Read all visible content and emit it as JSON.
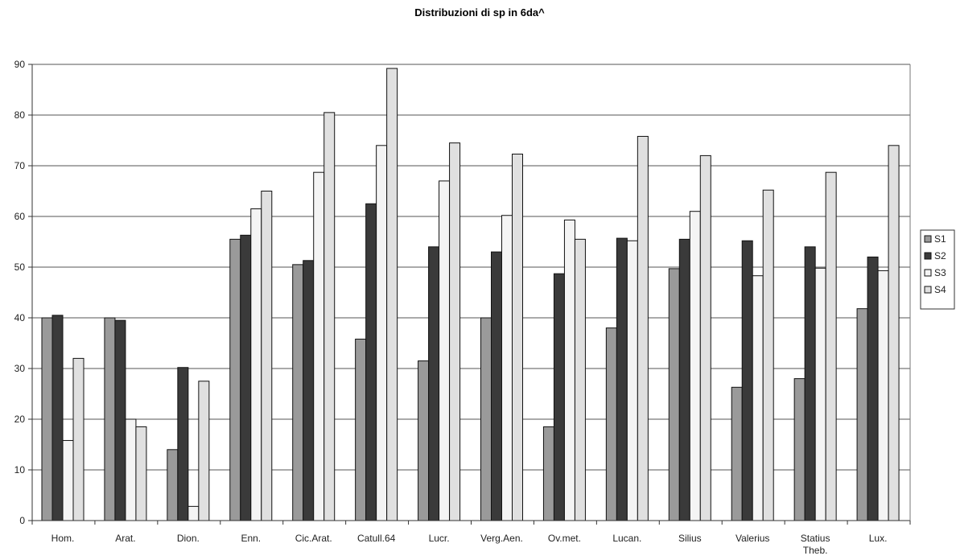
{
  "chart_data": {
    "type": "bar",
    "title": "Distribuzioni di sp in 6da^",
    "xlabel": "",
    "ylabel": "",
    "ylim": [
      0,
      90
    ],
    "yticks": [
      0,
      10,
      20,
      30,
      40,
      50,
      60,
      70,
      80,
      90
    ],
    "grid": true,
    "legend_position": "right",
    "categories": [
      [
        "Hom."
      ],
      [
        "Arat."
      ],
      [
        "Dion."
      ],
      [
        "Enn."
      ],
      [
        "Cic.Arat."
      ],
      [
        "Catull.64"
      ],
      [
        "Lucr."
      ],
      [
        "Verg.Aen."
      ],
      [
        "Ov.met."
      ],
      [
        "Lucan."
      ],
      [
        "Silius"
      ],
      [
        "Valerius"
      ],
      [
        "Statius",
        "Theb."
      ],
      [
        "Lux."
      ]
    ],
    "series": [
      {
        "name": "S1",
        "color": "#9a9a9a",
        "values": [
          40,
          40,
          14,
          55.5,
          50.5,
          35.8,
          31.5,
          40,
          18.5,
          38,
          49.7,
          26.3,
          28,
          41.8
        ]
      },
      {
        "name": "S2",
        "color": "#3a3a3a",
        "values": [
          40.5,
          39.5,
          30.2,
          56.3,
          51.3,
          62.5,
          54,
          53,
          48.7,
          55.7,
          55.5,
          55.2,
          54,
          52
        ]
      },
      {
        "name": "S3",
        "color": "#f4f4f4",
        "values": [
          15.8,
          20,
          2.8,
          61.5,
          68.7,
          74,
          67,
          60.2,
          59.3,
          55.2,
          61,
          48.3,
          49.8,
          49.3
        ]
      },
      {
        "name": "S4",
        "color": "#e0e0e0",
        "values": [
          32,
          18.5,
          27.5,
          65,
          80.5,
          89.2,
          74.5,
          72.3,
          55.5,
          75.8,
          72,
          65.2,
          68.7,
          74
        ]
      }
    ]
  }
}
